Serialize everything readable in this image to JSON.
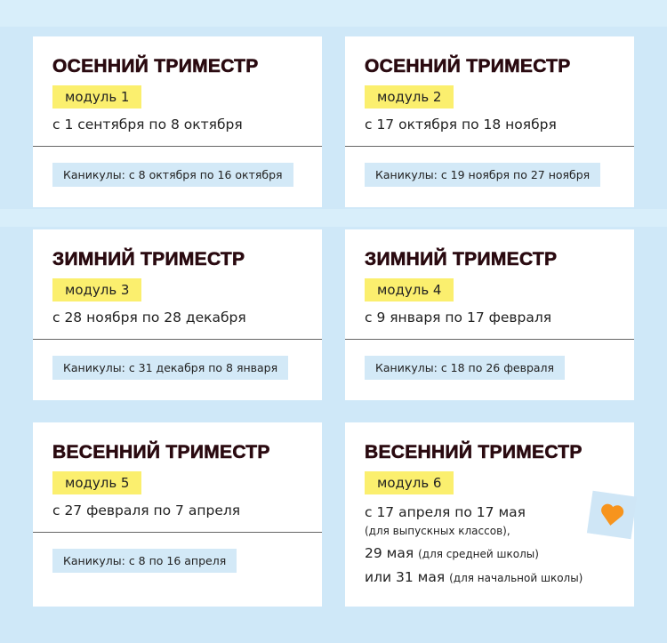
{
  "cards": [
    {
      "title": "ОСЕННИЙ ТРИМЕСТР",
      "module": "модуль 1",
      "dates": "с 1 сентября по 8 октября",
      "vacation": "Каникулы: с 8 октября по 16 октября"
    },
    {
      "title": "ОСЕННИЙ ТРИМЕСТР",
      "module": "модуль 2",
      "dates": "с 17 октября по 18 ноября",
      "vacation": "Каникулы: с 19 ноября по 27 ноября"
    },
    {
      "title": "ЗИМНИЙ ТРИМЕСТР",
      "module": "модуль 3",
      "dates": "с 28 ноября по 28 декабря",
      "vacation": "Каникулы: с 31 декабря по 8 января"
    },
    {
      "title": "ЗИМНИЙ ТРИМЕСТР",
      "module": "модуль 4",
      "dates": "с 9 января по 17 февраля",
      "vacation": "Каникулы: с 18 по 26 февраля"
    },
    {
      "title": "ВЕСЕННИЙ ТРИМЕСТР",
      "module": "модуль 5",
      "dates": "с 27 февраля по 7 апреля",
      "vacation": "Каникулы: с 8 по 16 апреля"
    }
  ],
  "last_card": {
    "title": "ВЕСЕННИЙ ТРИМЕСТР",
    "module": "модуль 6",
    "line1": "с 17 апреля по 17 мая",
    "line1_note": "(для выпускных классов),",
    "line2": "29 мая",
    "line2_note": "(для средней школы)",
    "line3": "или 31 мая",
    "line3_note": "(для начальной школы)",
    "sticker_icon": "heart-icon",
    "sticker_color": "#f7941d"
  },
  "colors": {
    "background": "#cfe8f8",
    "module_badge": "#fbef6e",
    "vacation_badge": "#d3e9f7",
    "title": "#2a0a10"
  }
}
